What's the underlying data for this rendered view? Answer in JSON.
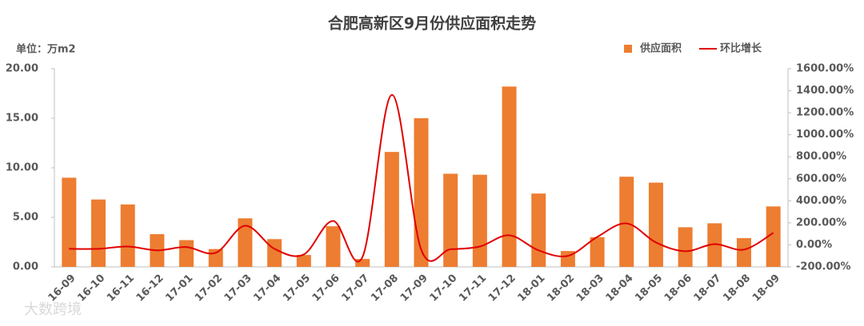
{
  "chart_data": {
    "type": "bar-line",
    "title": "合肥高新区9月份供应面积走势",
    "y_label": "单位：万m2",
    "watermark": "大数跨境",
    "categories": [
      "16-09",
      "16-10",
      "16-11",
      "16-12",
      "17-01",
      "17-02",
      "17-03",
      "17-04",
      "17-05",
      "17-06",
      "17-07",
      "17-08",
      "17-09",
      "17-10",
      "17-11",
      "17-12",
      "18-01",
      "18-02",
      "18-03",
      "18-04",
      "18-05",
      "18-06",
      "18-07",
      "18-08",
      "18-09"
    ],
    "series": [
      {
        "name": "供应面积",
        "color": "#ed7d31",
        "kind": "bar",
        "values": [
          9.0,
          6.8,
          6.3,
          3.3,
          2.7,
          1.8,
          4.9,
          2.8,
          1.2,
          4.1,
          0.8,
          11.6,
          15.0,
          9.4,
          9.3,
          18.2,
          7.4,
          1.6,
          3.0,
          9.1,
          8.5,
          4.0,
          4.4,
          2.9,
          6.1
        ]
      },
      {
        "name": "环比增长",
        "color": "#e00000",
        "kind": "line",
        "axis": "y2",
        "values": [
          -36,
          -36,
          -15,
          -50,
          -20,
          -72,
          174,
          -36,
          -87,
          217,
          -110,
          1362,
          -43,
          -40,
          -15,
          87,
          -50,
          -100,
          72,
          195,
          22,
          -58,
          7,
          -43,
          109
        ]
      }
    ],
    "ylim": [
      0,
      20
    ],
    "yticks": [
      {
        "value": 0,
        "label": "0.00"
      },
      {
        "value": 5,
        "label": "5.00"
      },
      {
        "value": 10,
        "label": "10.00"
      },
      {
        "value": 15,
        "label": "15.00"
      },
      {
        "value": 20,
        "label": "20.00"
      }
    ],
    "y2lim": [
      -200,
      1600
    ],
    "y2ticks": [
      {
        "value": -200,
        "label": "-200.00%"
      },
      {
        "value": 0,
        "label": "0.00%"
      },
      {
        "value": 200,
        "label": "200.00%"
      },
      {
        "value": 400,
        "label": "400.00%"
      },
      {
        "value": 600,
        "label": "600.00%"
      },
      {
        "value": 800,
        "label": "800.00%"
      },
      {
        "value": 1000,
        "label": "1000.00%"
      },
      {
        "value": 1200,
        "label": "1200.00%"
      },
      {
        "value": 1400,
        "label": "1400.00%"
      },
      {
        "value": 1600,
        "label": "1600.00%"
      }
    ],
    "legend": "top-right"
  }
}
